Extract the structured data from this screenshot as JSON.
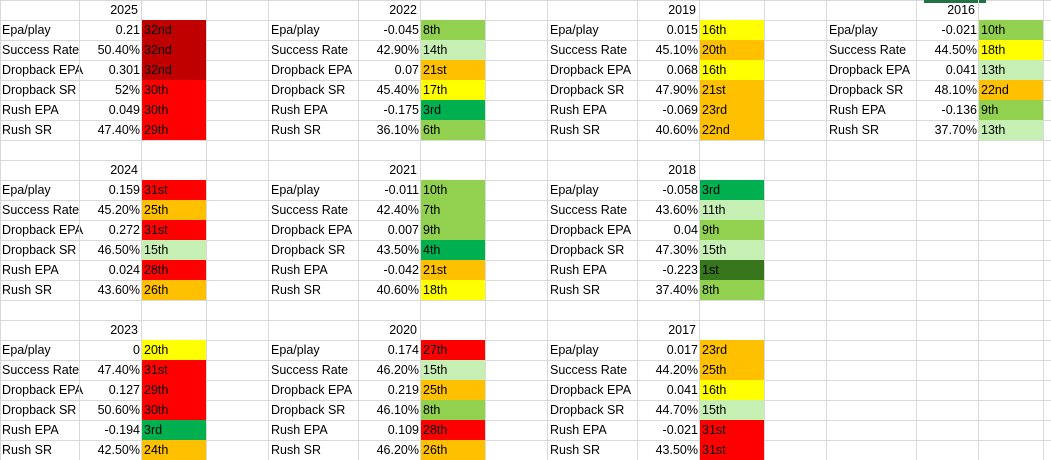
{
  "colors": {
    "dkred": "#c00000",
    "red": "#ff0000",
    "orange": "#ffc000",
    "yellow": "#ffff00",
    "ltgreen": "#c6efb4",
    "green": "#92d050",
    "dkgreen": "#00b050",
    "vdkgreen": "#38761d"
  },
  "blocks": [
    {
      "year": "2025",
      "rows": [
        {
          "label": "Epa/play",
          "value": "0.21",
          "rank": "32nd",
          "color": "dkred"
        },
        {
          "label": "Success Rate",
          "value": "50.40%",
          "rank": "32nd",
          "color": "dkred"
        },
        {
          "label": "Dropback EPA",
          "value": "0.301",
          "rank": "32nd",
          "color": "dkred"
        },
        {
          "label": "Dropback SR",
          "value": "52%",
          "rank": "30th",
          "color": "red"
        },
        {
          "label": "Rush EPA",
          "value": "0.049",
          "rank": "30th",
          "color": "red"
        },
        {
          "label": "Rush SR",
          "value": "47.40%",
          "rank": "29th",
          "color": "red"
        }
      ]
    },
    {
      "year": "2022",
      "rows": [
        {
          "label": "Epa/play",
          "value": "-0.045",
          "rank": "8th",
          "color": "green"
        },
        {
          "label": "Success Rate",
          "value": "42.90%",
          "rank": "14th",
          "color": "ltgreen"
        },
        {
          "label": "Dropback EPA",
          "value": "0.07",
          "rank": "21st",
          "color": "orange"
        },
        {
          "label": "Dropback SR",
          "value": "45.40%",
          "rank": "17th",
          "color": "yellow"
        },
        {
          "label": "Rush EPA",
          "value": "-0.175",
          "rank": "3rd",
          "color": "dkgreen"
        },
        {
          "label": "Rush SR",
          "value": "36.10%",
          "rank": "6th",
          "color": "green"
        }
      ]
    },
    {
      "year": "2019",
      "rows": [
        {
          "label": "Epa/play",
          "value": "0.015",
          "rank": "16th",
          "color": "yellow"
        },
        {
          "label": "Success Rate",
          "value": "45.10%",
          "rank": "20th",
          "color": "orange"
        },
        {
          "label": "Dropback EPA",
          "value": "0.068",
          "rank": "16th",
          "color": "yellow"
        },
        {
          "label": "Dropback SR",
          "value": "47.90%",
          "rank": "21st",
          "color": "orange"
        },
        {
          "label": "Rush EPA",
          "value": "-0.069",
          "rank": "23rd",
          "color": "orange"
        },
        {
          "label": "Rush SR",
          "value": "40.60%",
          "rank": "22nd",
          "color": "orange"
        }
      ]
    },
    {
      "year": "2016",
      "rows": [
        {
          "label": "Epa/play",
          "value": "-0.021",
          "rank": "10th",
          "color": "green"
        },
        {
          "label": "Success Rate",
          "value": "44.50%",
          "rank": "18th",
          "color": "yellow"
        },
        {
          "label": "Dropback EPA",
          "value": "0.041",
          "rank": "13th",
          "color": "ltgreen"
        },
        {
          "label": "Dropback SR",
          "value": "48.10%",
          "rank": "22nd",
          "color": "orange"
        },
        {
          "label": "Rush EPA",
          "value": "-0.136",
          "rank": "9th",
          "color": "green"
        },
        {
          "label": "Rush SR",
          "value": "37.70%",
          "rank": "13th",
          "color": "ltgreen"
        }
      ]
    },
    {
      "year": "2024",
      "rows": [
        {
          "label": "Epa/play",
          "value": "0.159",
          "rank": "31st",
          "color": "red"
        },
        {
          "label": "Success Rate",
          "value": "45.20%",
          "rank": "25th",
          "color": "orange"
        },
        {
          "label": "Dropback EPA",
          "value": "0.272",
          "rank": "31st",
          "color": "red"
        },
        {
          "label": "Dropback SR",
          "value": "46.50%",
          "rank": "15th",
          "color": "ltgreen"
        },
        {
          "label": "Rush EPA",
          "value": "0.024",
          "rank": "28th",
          "color": "red"
        },
        {
          "label": "Rush SR",
          "value": "43.60%",
          "rank": "26th",
          "color": "orange"
        }
      ]
    },
    {
      "year": "2021",
      "rows": [
        {
          "label": "Epa/play",
          "value": "-0.011",
          "rank": "10th",
          "color": "green"
        },
        {
          "label": "Success Rate",
          "value": "42.40%",
          "rank": "7th",
          "color": "green"
        },
        {
          "label": "Dropback EPA",
          "value": "0.007",
          "rank": "9th",
          "color": "green"
        },
        {
          "label": "Dropback SR",
          "value": "43.50%",
          "rank": "4th",
          "color": "dkgreen"
        },
        {
          "label": "Rush EPA",
          "value": "-0.042",
          "rank": "21st",
          "color": "orange"
        },
        {
          "label": "Rush SR",
          "value": "40.60%",
          "rank": "18th",
          "color": "yellow"
        }
      ]
    },
    {
      "year": "2018",
      "rows": [
        {
          "label": "Epa/play",
          "value": "-0.058",
          "rank": "3rd",
          "color": "dkgreen"
        },
        {
          "label": "Success Rate",
          "value": "43.60%",
          "rank": "11th",
          "color": "ltgreen"
        },
        {
          "label": "Dropback EPA",
          "value": "0.04",
          "rank": "9th",
          "color": "green"
        },
        {
          "label": "Dropback SR",
          "value": "47.30%",
          "rank": "15th",
          "color": "ltgreen"
        },
        {
          "label": "Rush EPA",
          "value": "-0.223",
          "rank": "1st",
          "color": "vdkgreen"
        },
        {
          "label": "Rush SR",
          "value": "37.40%",
          "rank": "8th",
          "color": "green"
        }
      ]
    },
    {
      "year": "2023",
      "rows": [
        {
          "label": "Epa/play",
          "value": "0",
          "rank": "20th",
          "color": "yellow"
        },
        {
          "label": "Success Rate",
          "value": "47.40%",
          "rank": "31st",
          "color": "red"
        },
        {
          "label": "Dropback EPA",
          "value": "0.127",
          "rank": "29th",
          "color": "red"
        },
        {
          "label": "Dropback SR",
          "value": "50.60%",
          "rank": "30th",
          "color": "red"
        },
        {
          "label": "Rush EPA",
          "value": "-0.194",
          "rank": "3rd",
          "color": "dkgreen"
        },
        {
          "label": "Rush SR",
          "value": "42.50%",
          "rank": "24th",
          "color": "orange"
        }
      ]
    },
    {
      "year": "2020",
      "rows": [
        {
          "label": "Epa/play",
          "value": "0.174",
          "rank": "27th",
          "color": "red"
        },
        {
          "label": "Success Rate",
          "value": "46.20%",
          "rank": "15th",
          "color": "ltgreen"
        },
        {
          "label": "Dropback EPA",
          "value": "0.219",
          "rank": "25th",
          "color": "orange"
        },
        {
          "label": "Dropback SR",
          "value": "46.10%",
          "rank": "8th",
          "color": "green"
        },
        {
          "label": "Rush EPA",
          "value": "0.109",
          "rank": "28th",
          "color": "red"
        },
        {
          "label": "Rush SR",
          "value": "46.20%",
          "rank": "26th",
          "color": "orange"
        }
      ]
    },
    {
      "year": "2017",
      "rows": [
        {
          "label": "Epa/play",
          "value": "0.017",
          "rank": "23rd",
          "color": "orange"
        },
        {
          "label": "Success Rate",
          "value": "44.20%",
          "rank": "25th",
          "color": "orange"
        },
        {
          "label": "Dropback EPA",
          "value": "0.041",
          "rank": "16th",
          "color": "yellow"
        },
        {
          "label": "Dropback SR",
          "value": "44.70%",
          "rank": "15th",
          "color": "ltgreen"
        },
        {
          "label": "Rush EPA",
          "value": "-0.021",
          "rank": "31st",
          "color": "red"
        },
        {
          "label": "Rush SR",
          "value": "43.50%",
          "rank": "31st",
          "color": "red"
        }
      ]
    }
  ]
}
